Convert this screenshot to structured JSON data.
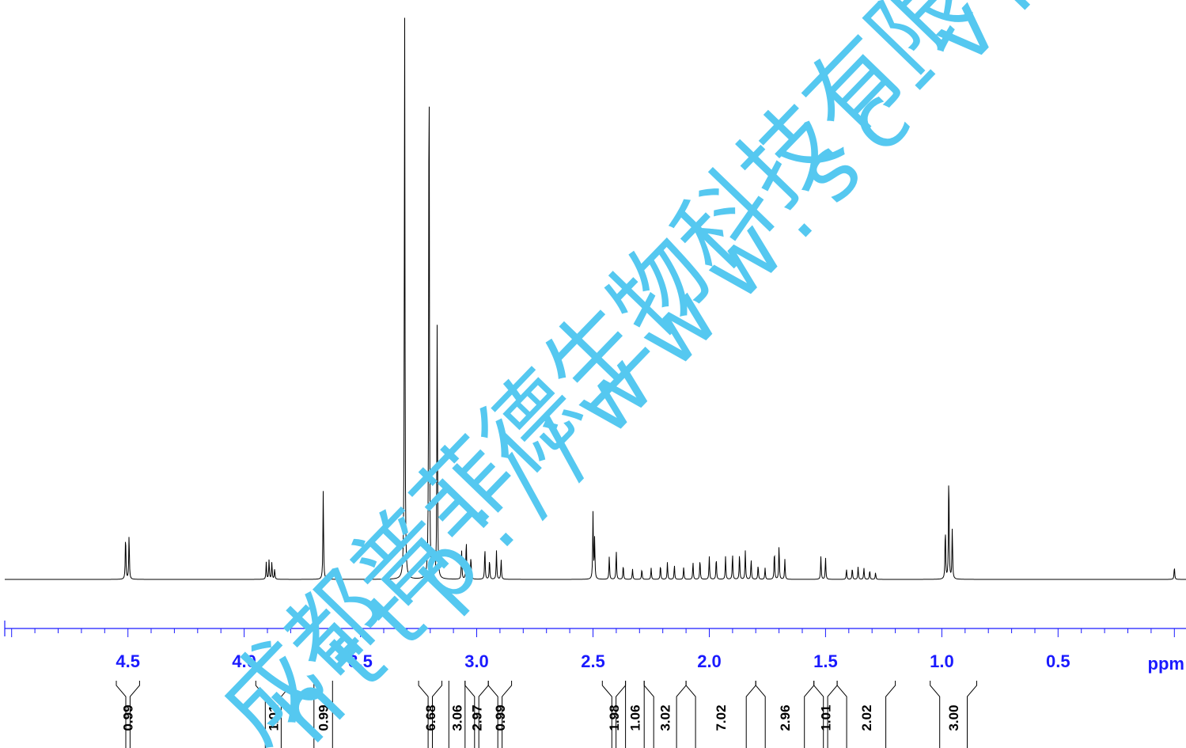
{
  "chart_data": {
    "type": "line",
    "title": "",
    "xlabel": "ppm",
    "ylabel": "",
    "xlim": [
      5.05,
      -0.05
    ],
    "x_reversed": true,
    "ylim": [
      0,
      1.0
    ],
    "grid": false,
    "colors": {
      "spectrum": "#000000",
      "axis": "#1a1aff",
      "watermark": "#55c8f0"
    },
    "x_ticks": [
      {
        "value": 4.5,
        "label": "4.5"
      },
      {
        "value": 4.0,
        "label": "4.0"
      },
      {
        "value": 3.5,
        "label": "3.5"
      },
      {
        "value": 3.0,
        "label": "3.0"
      },
      {
        "value": 2.5,
        "label": "2.5"
      },
      {
        "value": 2.0,
        "label": "2.0"
      },
      {
        "value": 1.5,
        "label": "1.5"
      },
      {
        "value": 1.0,
        "label": "1.0"
      },
      {
        "value": 0.5,
        "label": "0.5"
      }
    ],
    "peaks": [
      {
        "x": 4.51,
        "y": 0.078
      },
      {
        "x": 4.495,
        "y": 0.078
      },
      {
        "x": 3.905,
        "y": 0.03
      },
      {
        "x": 3.893,
        "y": 0.034
      },
      {
        "x": 3.881,
        "y": 0.03
      },
      {
        "x": 3.869,
        "y": 0.018
      },
      {
        "x": 3.66,
        "y": 0.155
      },
      {
        "x": 3.31,
        "y": 1.0
      },
      {
        "x": 3.205,
        "y": 0.99
      },
      {
        "x": 3.17,
        "y": 0.45
      },
      {
        "x": 3.065,
        "y": 0.05
      },
      {
        "x": 3.045,
        "y": 0.07
      },
      {
        "x": 3.025,
        "y": 0.04
      },
      {
        "x": 2.965,
        "y": 0.055
      },
      {
        "x": 2.945,
        "y": 0.035
      },
      {
        "x": 2.915,
        "y": 0.05
      },
      {
        "x": 2.895,
        "y": 0.035
      },
      {
        "x": 2.5,
        "y": 0.115
      },
      {
        "x": 2.493,
        "y": 0.07
      },
      {
        "x": 2.43,
        "y": 0.04
      },
      {
        "x": 2.4,
        "y": 0.05
      },
      {
        "x": 2.37,
        "y": 0.025
      },
      {
        "x": 2.33,
        "y": 0.018
      },
      {
        "x": 2.29,
        "y": 0.018
      },
      {
        "x": 2.25,
        "y": 0.02
      },
      {
        "x": 2.21,
        "y": 0.025
      },
      {
        "x": 2.18,
        "y": 0.03
      },
      {
        "x": 2.15,
        "y": 0.025
      },
      {
        "x": 2.11,
        "y": 0.022
      },
      {
        "x": 2.07,
        "y": 0.03
      },
      {
        "x": 2.04,
        "y": 0.035
      },
      {
        "x": 2.0,
        "y": 0.04
      },
      {
        "x": 1.97,
        "y": 0.038
      },
      {
        "x": 1.93,
        "y": 0.04
      },
      {
        "x": 1.9,
        "y": 0.045
      },
      {
        "x": 1.87,
        "y": 0.045
      },
      {
        "x": 1.845,
        "y": 0.05
      },
      {
        "x": 1.82,
        "y": 0.035
      },
      {
        "x": 1.79,
        "y": 0.025
      },
      {
        "x": 1.76,
        "y": 0.02
      },
      {
        "x": 1.72,
        "y": 0.05
      },
      {
        "x": 1.7,
        "y": 0.06
      },
      {
        "x": 1.675,
        "y": 0.035
      },
      {
        "x": 1.52,
        "y": 0.04
      },
      {
        "x": 1.5,
        "y": 0.038
      },
      {
        "x": 1.41,
        "y": 0.018
      },
      {
        "x": 1.385,
        "y": 0.02
      },
      {
        "x": 1.36,
        "y": 0.022
      },
      {
        "x": 1.335,
        "y": 0.02
      },
      {
        "x": 1.31,
        "y": 0.016
      },
      {
        "x": 1.285,
        "y": 0.012
      },
      {
        "x": 0.985,
        "y": 0.09
      },
      {
        "x": 0.97,
        "y": 0.19
      },
      {
        "x": 0.955,
        "y": 0.09
      },
      {
        "x": 0.0,
        "y": 0.022
      }
    ],
    "integrals": [
      {
        "from": 4.55,
        "to": 4.45,
        "value": "0.99"
      },
      {
        "from": 3.95,
        "to": 3.8,
        "value": "1.01"
      },
      {
        "from": 3.7,
        "to": 3.62,
        "value": "0.99"
      },
      {
        "from": 3.25,
        "to": 3.15,
        "value": "6.68"
      },
      {
        "from": 3.12,
        "to": 3.05,
        "value": "3.06"
      },
      {
        "from": 3.05,
        "to": 2.95,
        "value": "2.97"
      },
      {
        "from": 2.95,
        "to": 2.85,
        "value": "0.99"
      },
      {
        "from": 2.46,
        "to": 2.36,
        "value": "1.98"
      },
      {
        "from": 2.36,
        "to": 2.28,
        "value": "1.06"
      },
      {
        "from": 2.28,
        "to": 2.1,
        "value": "3.02"
      },
      {
        "from": 2.1,
        "to": 1.8,
        "value": "7.02"
      },
      {
        "from": 1.8,
        "to": 1.55,
        "value": "2.96"
      },
      {
        "from": 1.55,
        "to": 1.45,
        "value": "1.01"
      },
      {
        "from": 1.45,
        "to": 1.2,
        "value": "2.02"
      },
      {
        "from": 1.05,
        "to": 0.85,
        "value": "3.00"
      }
    ]
  },
  "watermark": {
    "company_cn": "成都普菲德生物科技有限公司",
    "url": "http://www.sc-victory.com"
  }
}
